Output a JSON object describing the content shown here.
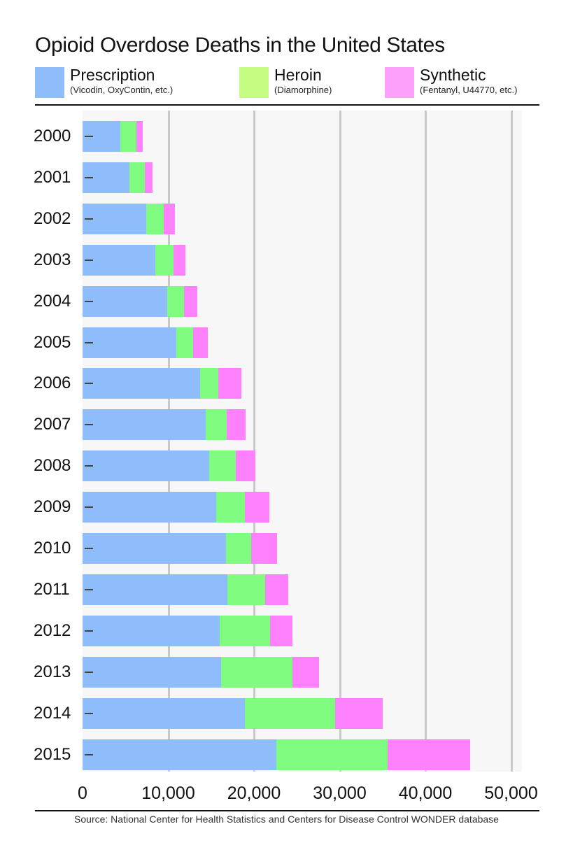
{
  "chart_data": {
    "type": "bar",
    "orientation": "horizontal",
    "stacked": true,
    "title": "Opioid Overdose Deaths in the United States",
    "xlabel": "",
    "ylabel": "",
    "xlim": [
      0,
      50000
    ],
    "x_ticks": [
      "0",
      "10,000",
      "20,000",
      "30,000",
      "40,000",
      "50,000"
    ],
    "grid": true,
    "legend_position": "top",
    "categories": [
      "2000",
      "2001",
      "2002",
      "2003",
      "2004",
      "2005",
      "2006",
      "2007",
      "2008",
      "2009",
      "2010",
      "2011",
      "2012",
      "2013",
      "2014",
      "2015"
    ],
    "series": [
      {
        "name": "Prescription",
        "subtitle": "(Vicodin, OxyContin, etc.)",
        "color": "#8fbcfb",
        "values": [
          4400,
          5500,
          7400,
          8500,
          9900,
          10900,
          13700,
          14400,
          14800,
          15600,
          16700,
          16900,
          16000,
          16200,
          18900,
          22600
        ]
      },
      {
        "name": "Heroin",
        "subtitle": "(Diamorphine)",
        "color": "#7ffc7f",
        "values": [
          1900,
          1800,
          2100,
          2100,
          1900,
          2000,
          2100,
          2400,
          3100,
          3300,
          3000,
          4400,
          5900,
          8300,
          10600,
          13000
        ]
      },
      {
        "name": "Synthetic",
        "subtitle": "(Fentanyl, U44770, etc.)",
        "color": "#fd80fc",
        "values": [
          700,
          900,
          1300,
          1400,
          1600,
          1700,
          2700,
          2200,
          2300,
          2900,
          3000,
          2700,
          2600,
          3100,
          5500,
          9600
        ]
      }
    ],
    "source": "Source: National Center for Health Statistics and Centers for Disease Control WONDER database"
  }
}
